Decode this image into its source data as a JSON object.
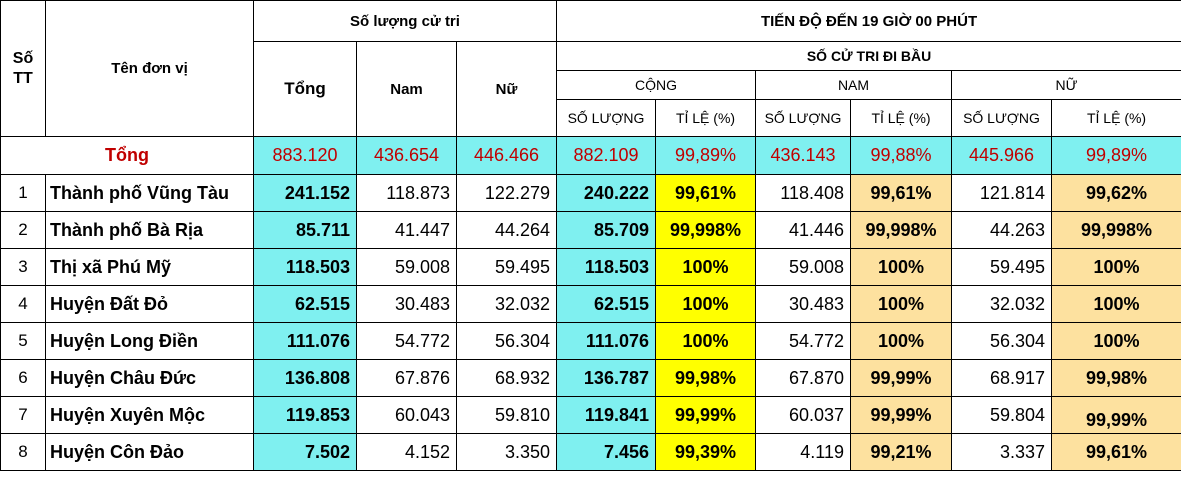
{
  "header": {
    "stt_line1": "Số",
    "stt_line2": "TT",
    "unit_name": "Tên đơn vị",
    "voter_count": "Số lượng cử tri",
    "total": "Tổng",
    "male": "Nam",
    "female": "Nữ",
    "progress": "TIẾN ĐỘ ĐẾN 19 GIỜ 00 PHÚT",
    "voters_voted": "SỐ CỬ TRI ĐI BẦU",
    "sum": "CỘNG",
    "male_upper": "NAM",
    "female_upper": "NỮ",
    "quantity": "SỐ LƯỢNG",
    "rate": "TỈ LỆ (%)"
  },
  "colors": {
    "cyan": "#7ff0f0",
    "yellow": "#ffff00",
    "tan": "#fde19f",
    "total_red": "#c00000"
  },
  "total_row": {
    "label": "Tổng",
    "total": "883.120",
    "male": "436.654",
    "female": "446.466",
    "sum_qty": "882.109",
    "sum_rate": "99,89%",
    "male_qty": "436.143",
    "male_rate": "99,88%",
    "female_qty": "445.966",
    "female_rate": "99,89%"
  },
  "rows": [
    {
      "stt": "1",
      "name": "Thành phố Vũng Tàu",
      "total": "241.152",
      "male": "118.873",
      "female": "122.279",
      "sum_qty": "240.222",
      "sum_rate": "99,61%",
      "male_qty": "118.408",
      "male_rate": "99,61%",
      "female_qty": "121.814",
      "female_rate": "99,62%"
    },
    {
      "stt": "2",
      "name": "Thành phố Bà Rịa",
      "total": "85.711",
      "male": "41.447",
      "female": "44.264",
      "sum_qty": "85.709",
      "sum_rate": "99,998%",
      "male_qty": "41.446",
      "male_rate": "99,998%",
      "female_qty": "44.263",
      "female_rate": "99,998%"
    },
    {
      "stt": "3",
      "name": "Thị xã Phú Mỹ",
      "total": "118.503",
      "male": "59.008",
      "female": "59.495",
      "sum_qty": "118.503",
      "sum_rate": "100%",
      "male_qty": "59.008",
      "male_rate": "100%",
      "female_qty": "59.495",
      "female_rate": "100%"
    },
    {
      "stt": "4",
      "name": "Huyện Đất Đỏ",
      "total": "62.515",
      "male": "30.483",
      "female": "32.032",
      "sum_qty": "62.515",
      "sum_rate": "100%",
      "male_qty": "30.483",
      "male_rate": "100%",
      "female_qty": "32.032",
      "female_rate": "100%"
    },
    {
      "stt": "5",
      "name": "Huyện Long Điền",
      "total": "111.076",
      "male": "54.772",
      "female": "56.304",
      "sum_qty": "111.076",
      "sum_rate": "100%",
      "male_qty": "54.772",
      "male_rate": "100%",
      "female_qty": "56.304",
      "female_rate": "100%"
    },
    {
      "stt": "6",
      "name": "Huyện Châu Đức",
      "total": "136.808",
      "male": "67.876",
      "female": "68.932",
      "sum_qty": "136.787",
      "sum_rate": "99,98%",
      "male_qty": "67.870",
      "male_rate": "99,99%",
      "female_qty": "68.917",
      "female_rate": "99,98%"
    },
    {
      "stt": "7",
      "name": "Huyện Xuyên Mộc",
      "total": "119.853",
      "male": "60.043",
      "female": "59.810",
      "sum_qty": "119.841",
      "sum_rate": "99,99%",
      "male_qty": "60.037",
      "male_rate": "99,99%",
      "female_qty": "59.804",
      "female_rate": "99,99%"
    },
    {
      "stt": "8",
      "name": "Huyện Côn Đảo",
      "total": "7.502",
      "male": "4.152",
      "female": "3.350",
      "sum_qty": "7.456",
      "sum_rate": "99,39%",
      "male_qty": "4.119",
      "male_rate": "99,21%",
      "female_qty": "3.337",
      "female_rate": "99,61%"
    }
  ]
}
